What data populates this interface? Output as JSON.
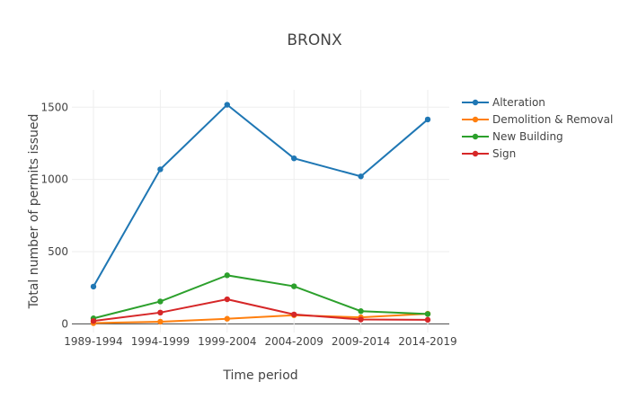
{
  "chart_data": {
    "type": "line",
    "title": "BRONX",
    "xlabel": "Time period",
    "ylabel": "Total number of permits issued",
    "categories": [
      "1989-1994",
      "1994-1999",
      "1999-2004",
      "2004-2009",
      "2009-2014",
      "2014-2019"
    ],
    "ylim": [
      -60,
      1620
    ],
    "yticks": [
      0,
      500,
      1000,
      1500
    ],
    "grid": true,
    "legend_position": "top-right",
    "series": [
      {
        "name": "Alteration",
        "color": "#1f77b4",
        "values": [
          258,
          1070,
          1517,
          1146,
          1021,
          1415
        ]
      },
      {
        "name": "Demolition & Removal",
        "color": "#ff7f0e",
        "values": [
          5,
          15,
          35,
          60,
          45,
          70
        ]
      },
      {
        "name": "New Building",
        "color": "#2ca02c",
        "values": [
          38,
          155,
          336,
          260,
          88,
          68
        ]
      },
      {
        "name": "Sign",
        "color": "#d62728",
        "values": [
          20,
          78,
          170,
          65,
          30,
          28
        ]
      }
    ]
  }
}
